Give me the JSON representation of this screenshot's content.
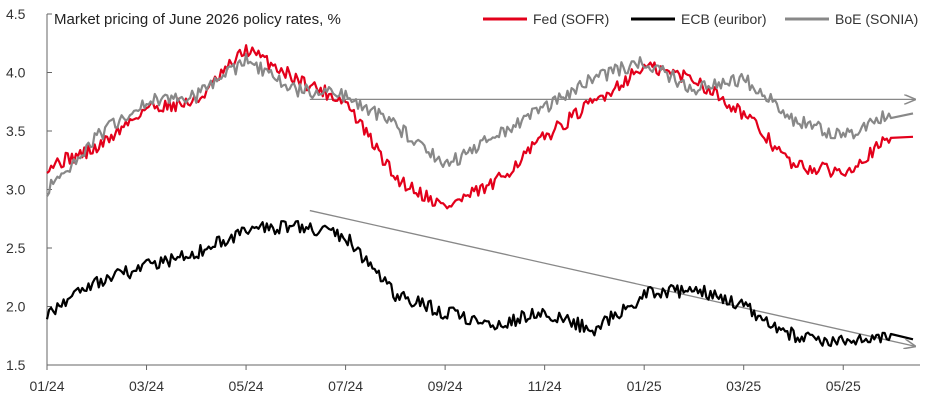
{
  "chart_data": {
    "type": "line",
    "title": "Market pricing of June 2026 policy rates, %",
    "xlabel": "",
    "ylabel": "",
    "ylim": [
      1.5,
      4.5
    ],
    "yticks": [
      "1.5",
      "2.0",
      "2.5",
      "3.0",
      "3.5",
      "4.0",
      "4.5"
    ],
    "xticks": [
      "01/24",
      "03/24",
      "05/24",
      "07/24",
      "09/24",
      "11/24",
      "01/25",
      "03/25",
      "05/25"
    ],
    "grid": false,
    "legend_position": "top-right",
    "x": [
      "01/24",
      "02/24",
      "03/24",
      "04/24",
      "05/24",
      "06/24",
      "07/24",
      "08/24",
      "09/24",
      "10/24",
      "11/24",
      "12/24",
      "01/25",
      "02/25",
      "03/25",
      "04/25",
      "05/25",
      "06/25"
    ],
    "series": [
      {
        "name": "Fed (SOFR)",
        "color": "#e3001b",
        "values": [
          3.2,
          3.35,
          3.7,
          3.75,
          4.2,
          3.95,
          3.75,
          3.1,
          2.85,
          3.05,
          3.45,
          3.75,
          4.05,
          3.95,
          3.65,
          3.2,
          3.15,
          3.45
        ]
      },
      {
        "name": "ECB (euribor)",
        "color": "#000000",
        "values": [
          1.95,
          2.2,
          2.35,
          2.45,
          2.65,
          2.7,
          2.6,
          2.1,
          1.95,
          1.85,
          1.95,
          1.8,
          2.1,
          2.15,
          2.0,
          1.75,
          1.7,
          1.72
        ]
      },
      {
        "name": "BoE (SONIA)",
        "color": "#888888",
        "values": [
          3.0,
          3.45,
          3.75,
          3.8,
          4.1,
          3.85,
          3.8,
          3.55,
          3.2,
          3.45,
          3.7,
          3.95,
          4.1,
          3.85,
          3.95,
          3.6,
          3.45,
          3.65
        ]
      }
    ],
    "trend_arrows": [
      {
        "color": "#888888",
        "x_start": "06/24",
        "y_start": 3.77,
        "x_end": "06/25",
        "y_end": 3.77
      },
      {
        "color": "#888888",
        "x_start": "06/24",
        "y_start": 2.82,
        "x_end": "06/25",
        "y_end": 1.66
      }
    ]
  }
}
